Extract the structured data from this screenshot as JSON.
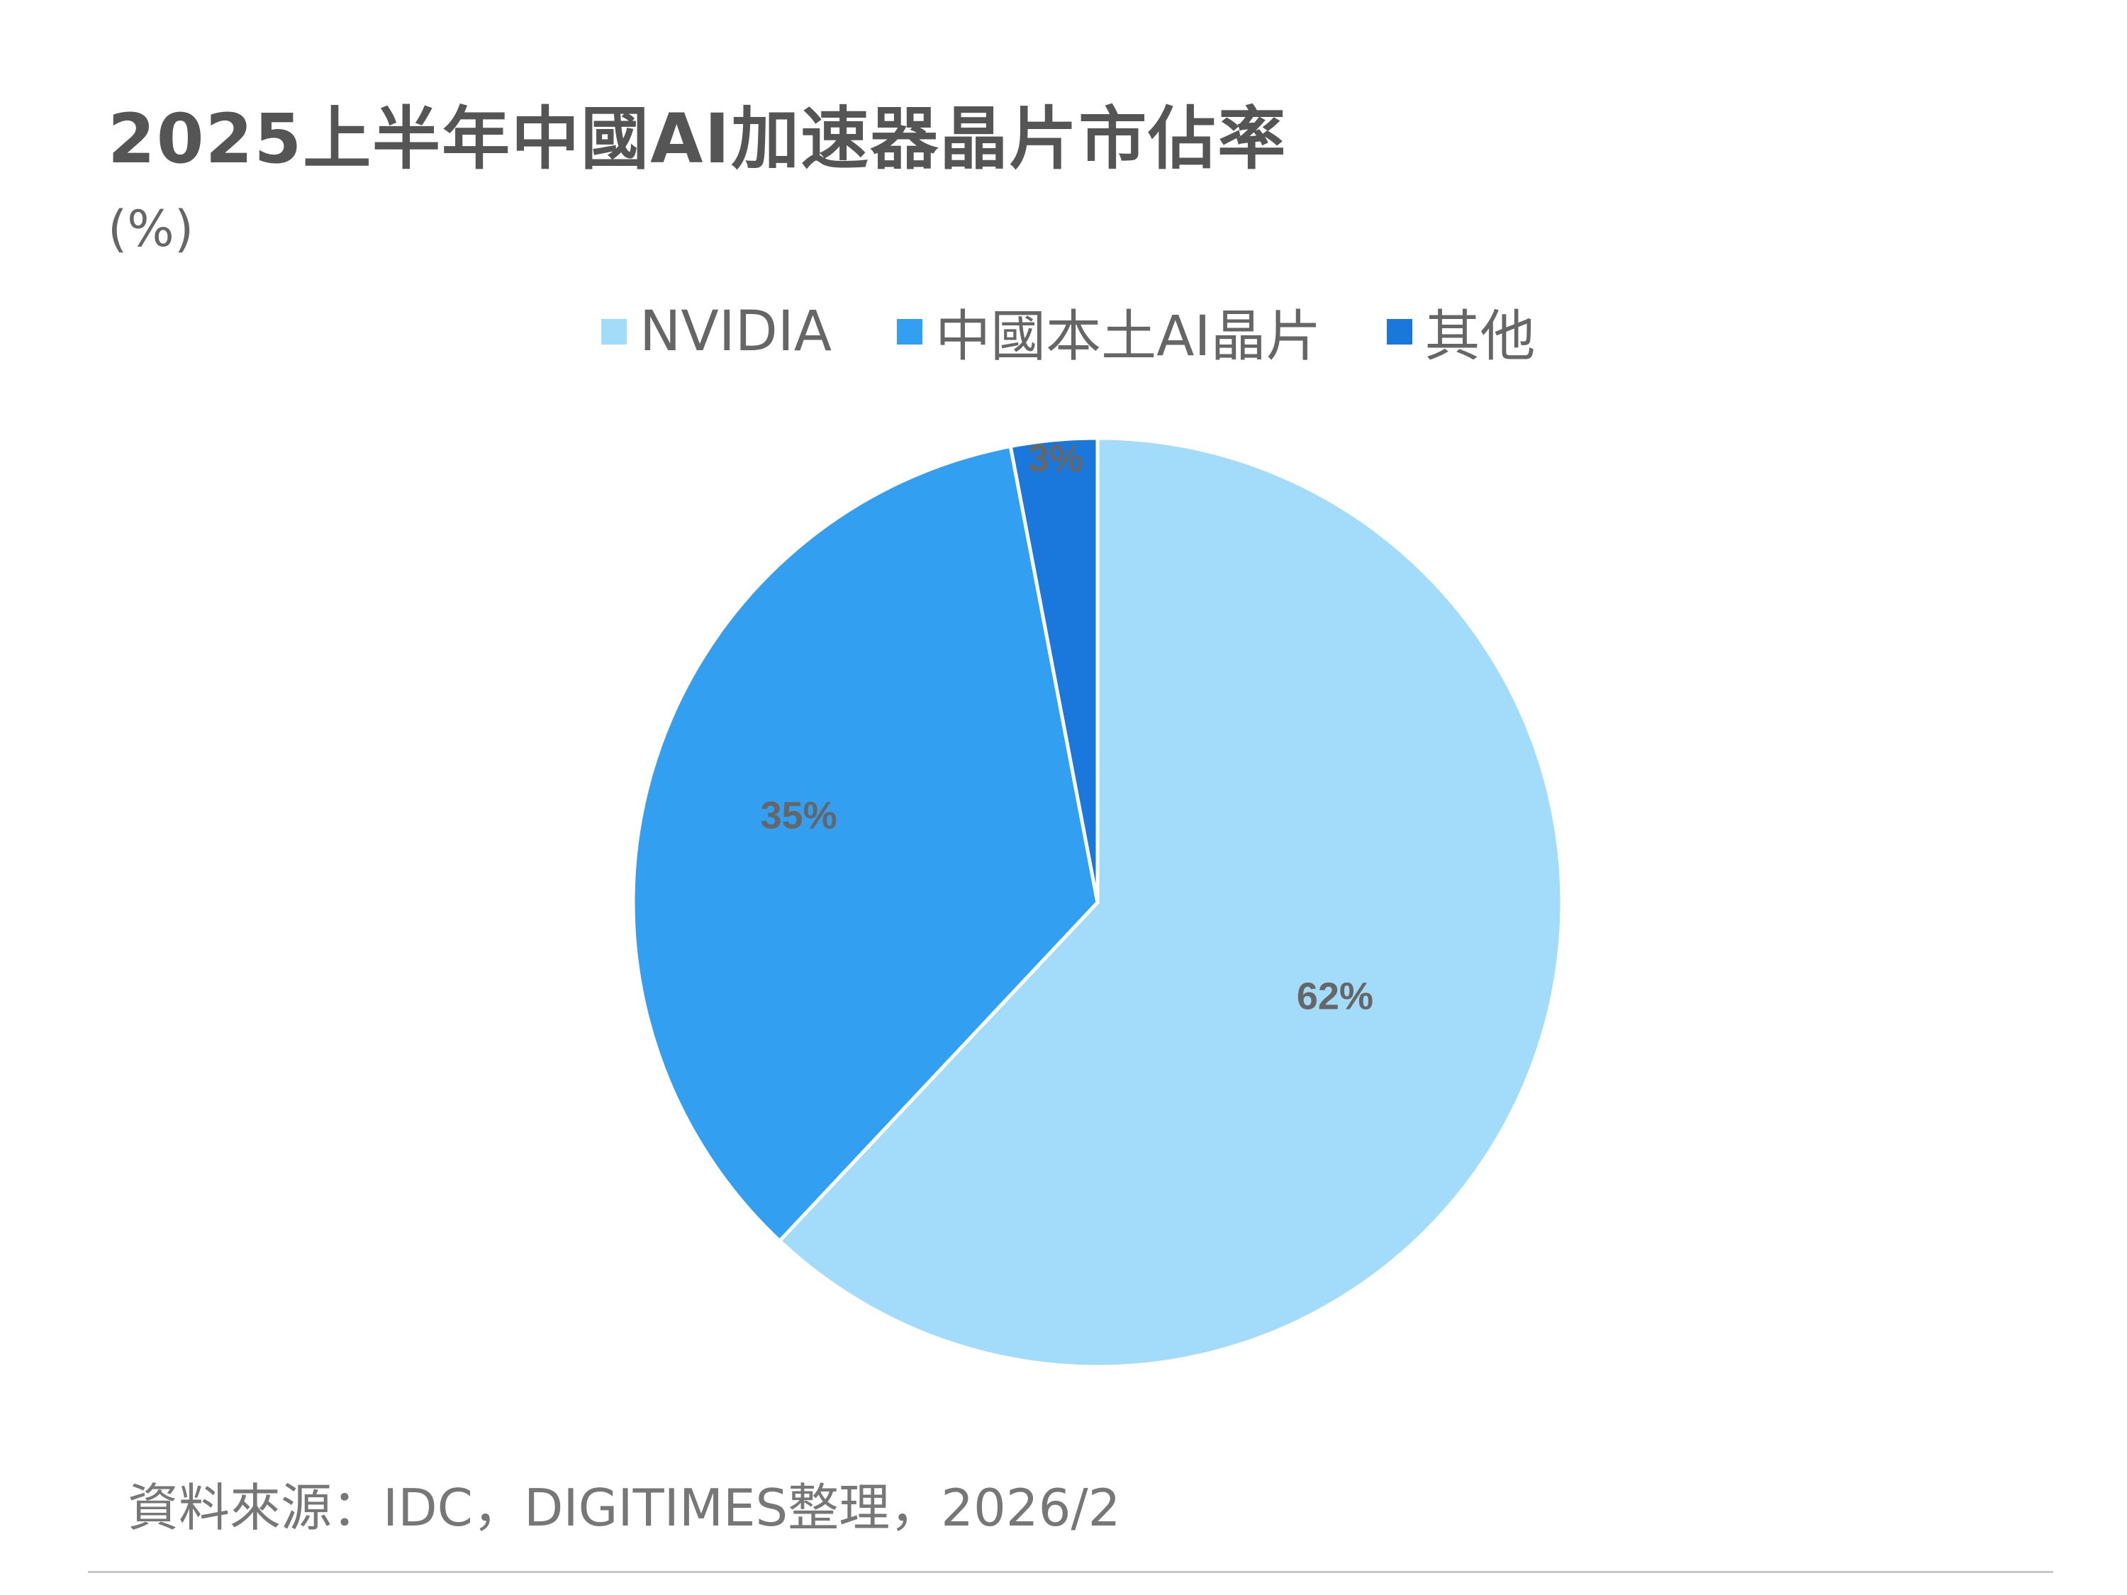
{
  "chart_data": {
    "type": "pie",
    "title": "2025上半年中國AI加速器晶片市佔率",
    "unit_label": "(%)",
    "categories": [
      "NVIDIA",
      "中國本土AI晶片",
      "其他"
    ],
    "values": [
      62,
      35,
      3
    ],
    "data_labels": [
      "62%",
      "35%",
      "3%"
    ],
    "colors": [
      "#a3dbfa",
      "#339ff0",
      "#1a78dc"
    ],
    "legend_position": "top",
    "start_angle": "12 o'clock",
    "direction": "clockwise"
  },
  "source": "資料來源：IDC，DIGITIMES整理，2026/2",
  "colors": {
    "background": "#ffffff",
    "text": "#666666",
    "data_label": "#666666"
  }
}
